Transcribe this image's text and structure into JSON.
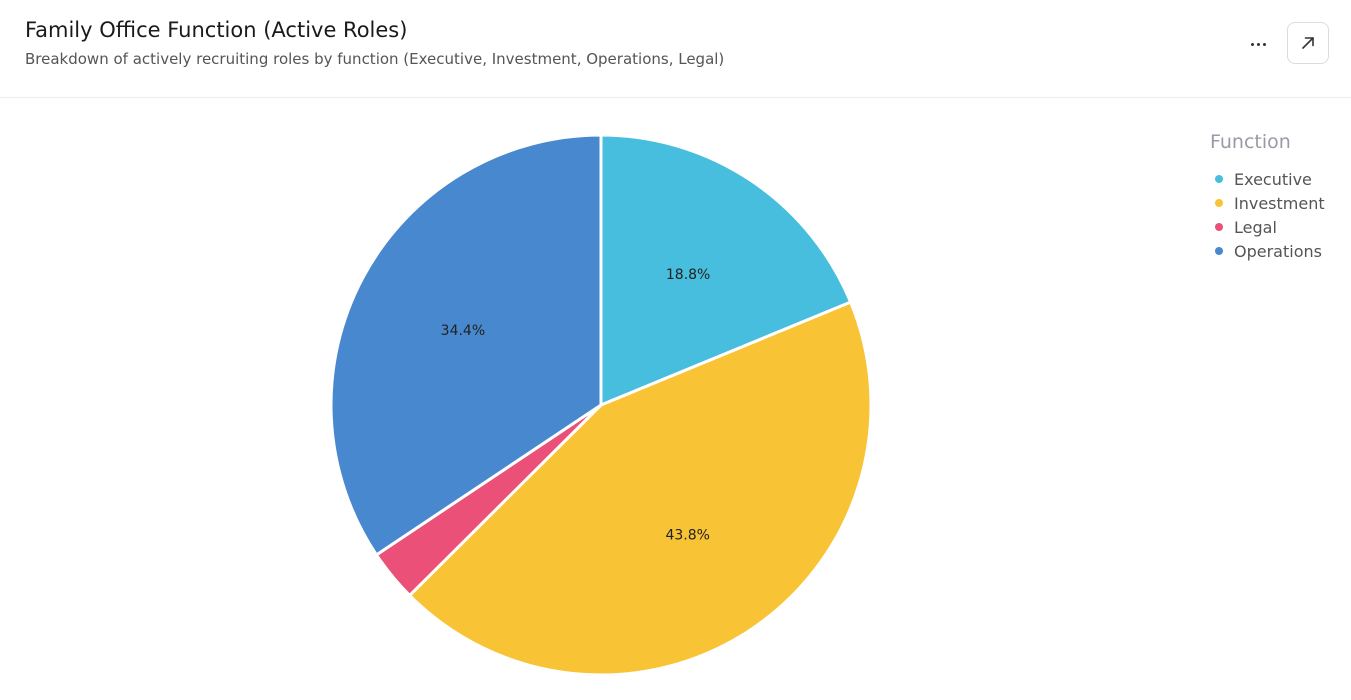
{
  "header": {
    "title": "Family Office Function (Active Roles)",
    "subtitle": "Breakdown of actively recruiting roles by function (Executive, Investment, Operations, Legal)",
    "more_icon": "more-horizontal-icon",
    "expand_icon": "arrow-up-right-icon"
  },
  "legend": {
    "title": "Function",
    "items": [
      {
        "label": "Executive",
        "color": "#47BEDD"
      },
      {
        "label": "Investment",
        "color": "#F8C335"
      },
      {
        "label": "Legal",
        "color": "#EA5078"
      },
      {
        "label": "Operations",
        "color": "#4888CE"
      }
    ]
  },
  "chart_data": {
    "type": "pie",
    "title": "Family Office Function (Active Roles)",
    "legend_title": "Function",
    "legend_position": "top-right",
    "slices": [
      {
        "name": "Executive",
        "value": 18.8,
        "label": "18.8%",
        "color": "#47BEDD"
      },
      {
        "name": "Investment",
        "value": 43.8,
        "label": "43.8%",
        "color": "#F8C335"
      },
      {
        "name": "Legal",
        "value": 3.1,
        "label": "",
        "color": "#EA5078"
      },
      {
        "name": "Operations",
        "value": 34.4,
        "label": "34.4%",
        "color": "#4888CE"
      }
    ]
  }
}
